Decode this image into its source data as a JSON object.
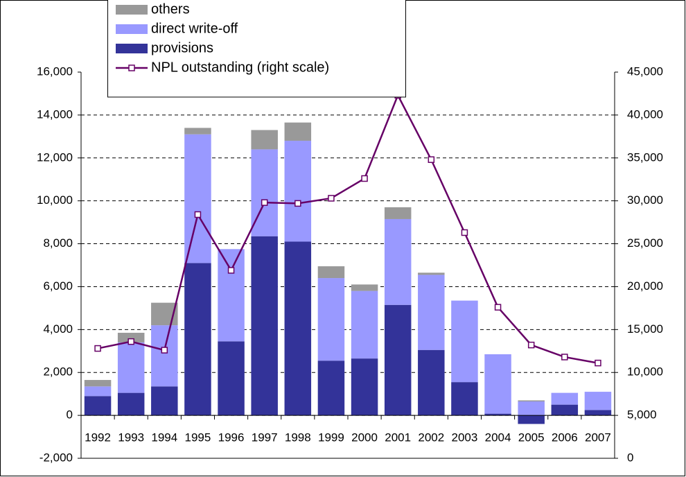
{
  "chart_data": {
    "type": "bar",
    "categories": [
      "1992",
      "1993",
      "1994",
      "1995",
      "1996",
      "1997",
      "1998",
      "1999",
      "2000",
      "2001",
      "2002",
      "2003",
      "2004",
      "2005",
      "2006",
      "2007"
    ],
    "series": [
      {
        "name": "provisions",
        "color": "#333399",
        "values": [
          900,
          1050,
          1350,
          7100,
          3450,
          8350,
          8100,
          2550,
          2650,
          5150,
          3050,
          1550,
          80,
          -400,
          500,
          250
        ]
      },
      {
        "name": "direct write-off",
        "color": "#9999ff",
        "values": [
          450,
          2350,
          2850,
          6000,
          4300,
          4050,
          4700,
          3850,
          3150,
          4000,
          3500,
          3800,
          2770,
          650,
          550,
          850
        ]
      },
      {
        "name": "others",
        "color": "#999999",
        "values": [
          300,
          450,
          1050,
          300,
          0,
          900,
          850,
          550,
          300,
          550,
          100,
          0,
          0,
          50,
          0,
          0
        ]
      },
      {
        "name": "NPL outstanding (right scale)",
        "color": "#660066",
        "type": "line",
        "axis": "y2",
        "values": [
          12800,
          13600,
          12600,
          28400,
          21900,
          29800,
          29700,
          30300,
          32600,
          42300,
          34800,
          26300,
          17600,
          13200,
          11800,
          11100
        ]
      }
    ],
    "ylim": [
      -2000,
      16000
    ],
    "yticks": [
      {
        "value": -2000,
        "label": "-2,000"
      },
      0,
      {
        "value": 2000,
        "label": "2,000"
      },
      {
        "value": 4000,
        "label": "4,000"
      },
      {
        "value": 6000,
        "label": "6,000"
      },
      {
        "value": 8000,
        "label": "8,000"
      },
      {
        "value": 10000,
        "label": "10,000"
      },
      {
        "value": 12000,
        "label": "12,000"
      },
      {
        "value": 14000,
        "label": "14,000"
      },
      {
        "value": 16000,
        "label": "16,000"
      }
    ],
    "y2lim": [
      0,
      45000
    ],
    "y2ticks": [
      0,
      {
        "value": 5000,
        "label": "5,000"
      },
      {
        "value": 10000,
        "label": "10,000"
      },
      {
        "value": 15000,
        "label": "15,000"
      },
      {
        "value": 20000,
        "label": "20,000"
      },
      {
        "value": 25000,
        "label": "25,000"
      },
      {
        "value": 30000,
        "label": "30,000"
      },
      {
        "value": 35000,
        "label": "35,000"
      },
      {
        "value": 40000,
        "label": "40,000"
      },
      {
        "value": 45000,
        "label": "45,000"
      }
    ],
    "grid": true
  }
}
